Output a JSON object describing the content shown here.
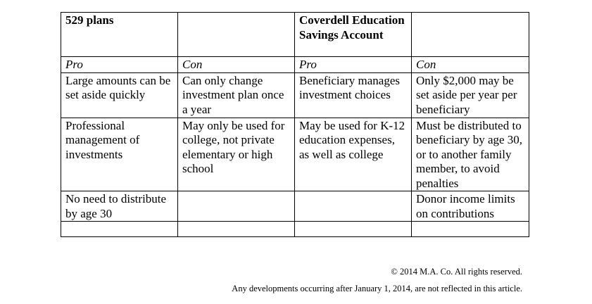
{
  "table": {
    "headers": [
      "529 plans",
      "",
      "Coverdell Education Savings Account",
      ""
    ],
    "subheaders": [
      "Pro",
      "Con",
      "Pro",
      "Con"
    ],
    "rows": [
      [
        "Large amounts can be set aside quickly",
        "Can only change investment plan once a year",
        "Beneficiary manages investment choices",
        "Only $2,000 may be set aside per year per beneficiary"
      ],
      [
        "Professional management of investments",
        "May only be used for college, not private elementary or high school",
        "May be used for K-12 education expenses, as well as college",
        "Must be distributed to beneficiary by age 30, or to another family member, to avoid penalties"
      ],
      [
        "No need to distribute by age 30",
        "",
        "",
        "Donor income limits on contributions"
      ],
      [
        "",
        "",
        "",
        ""
      ]
    ]
  },
  "footer": {
    "copyright": "© 2014 M.A. Co. All rights reserved.",
    "disclaimer": "Any developments occurring after January 1, 2014, are not reflected in this article."
  }
}
